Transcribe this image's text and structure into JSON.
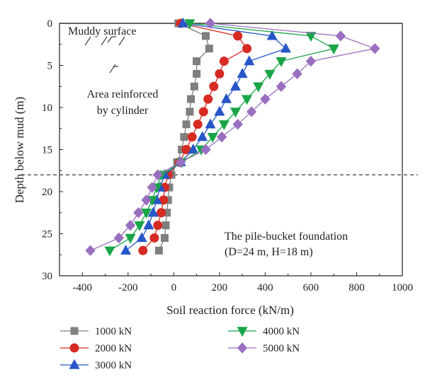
{
  "chart_data": {
    "type": "line",
    "xlabel": "Soil reaction force (kN/m)",
    "ylabel": "Depth below mud (m)",
    "xlim": [
      -500,
      1000
    ],
    "ylim": [
      0,
      30
    ],
    "y_inverted": true,
    "x_ticks": [
      -400,
      -200,
      0,
      200,
      400,
      600,
      800,
      1000
    ],
    "y_ticks": [
      0,
      5,
      10,
      15,
      20,
      25,
      30
    ],
    "grid": false,
    "legend_position": "bottom",
    "annotations": {
      "surface": "Muddy surface",
      "area_line1": "Area reinforced",
      "area_line2": "by cylinder",
      "foundation_line1": "The pile-bucket foundation",
      "foundation_line2": "(D=24 m, H=18 m)"
    },
    "reference_lines": {
      "mud_surface_depth": 0,
      "bucket_bottom_depth": 18
    },
    "series": [
      {
        "name": "1000 kN",
        "marker": "square",
        "color": "#7f7f7f",
        "points": [
          [
            20,
            0
          ],
          [
            140,
            1.5
          ],
          [
            155,
            3
          ],
          [
            100,
            4.5
          ],
          [
            100,
            6
          ],
          [
            90,
            7.5
          ],
          [
            75,
            9
          ],
          [
            70,
            10.5
          ],
          [
            55,
            12
          ],
          [
            45,
            13.5
          ],
          [
            35,
            15
          ],
          [
            15,
            16.5
          ],
          [
            -10,
            18
          ],
          [
            -20,
            19.5
          ],
          [
            -25,
            21
          ],
          [
            -30,
            22.5
          ],
          [
            -35,
            24
          ],
          [
            -40,
            25.5
          ],
          [
            -65,
            27
          ]
        ]
      },
      {
        "name": "2000 kN",
        "marker": "circle",
        "color": "#d62a22",
        "points": [
          [
            30,
            0
          ],
          [
            280,
            1.5
          ],
          [
            320,
            3
          ],
          [
            220,
            4.5
          ],
          [
            200,
            6
          ],
          [
            175,
            7.5
          ],
          [
            150,
            9
          ],
          [
            130,
            10.5
          ],
          [
            105,
            12
          ],
          [
            80,
            13.5
          ],
          [
            55,
            15
          ],
          [
            25,
            16.5
          ],
          [
            -25,
            18
          ],
          [
            -40,
            19.5
          ],
          [
            -45,
            21
          ],
          [
            -55,
            22.5
          ],
          [
            -70,
            24
          ],
          [
            -85,
            25.5
          ],
          [
            -135,
            27
          ]
        ]
      },
      {
        "name": "3000 kN",
        "marker": "triangle-up",
        "color": "#2756c8",
        "points": [
          [
            40,
            0
          ],
          [
            430,
            1.5
          ],
          [
            490,
            3
          ],
          [
            330,
            4.5
          ],
          [
            300,
            6
          ],
          [
            270,
            7.5
          ],
          [
            230,
            9
          ],
          [
            200,
            10.5
          ],
          [
            160,
            12
          ],
          [
            125,
            13.5
          ],
          [
            85,
            15
          ],
          [
            30,
            16.5
          ],
          [
            -40,
            18
          ],
          [
            -60,
            19.5
          ],
          [
            -75,
            21
          ],
          [
            -90,
            22.5
          ],
          [
            -110,
            24
          ],
          [
            -140,
            25.5
          ],
          [
            -210,
            27
          ]
        ]
      },
      {
        "name": "4000 kN",
        "marker": "triangle-down",
        "color": "#18a548",
        "points": [
          [
            70,
            0
          ],
          [
            600,
            1.5
          ],
          [
            700,
            3
          ],
          [
            470,
            4.5
          ],
          [
            420,
            6
          ],
          [
            370,
            7.5
          ],
          [
            320,
            9
          ],
          [
            270,
            10.5
          ],
          [
            220,
            12
          ],
          [
            170,
            13.5
          ],
          [
            120,
            15
          ],
          [
            35,
            16.5
          ],
          [
            -55,
            18
          ],
          [
            -75,
            19.5
          ],
          [
            -95,
            21
          ],
          [
            -120,
            22.5
          ],
          [
            -150,
            24
          ],
          [
            -190,
            25.5
          ],
          [
            -280,
            27
          ]
        ]
      },
      {
        "name": "5000 kN",
        "marker": "diamond",
        "color": "#9b6fbf",
        "points": [
          [
            160,
            0
          ],
          [
            730,
            1.5
          ],
          [
            880,
            3
          ],
          [
            600,
            4.5
          ],
          [
            540,
            6
          ],
          [
            470,
            7.5
          ],
          [
            400,
            9
          ],
          [
            340,
            10.5
          ],
          [
            280,
            12
          ],
          [
            210,
            13.5
          ],
          [
            140,
            15
          ],
          [
            30,
            16.5
          ],
          [
            -70,
            18
          ],
          [
            -95,
            19.5
          ],
          [
            -120,
            21
          ],
          [
            -155,
            22.5
          ],
          [
            -190,
            24
          ],
          [
            -240,
            25.5
          ],
          [
            -365,
            27
          ]
        ]
      }
    ]
  }
}
